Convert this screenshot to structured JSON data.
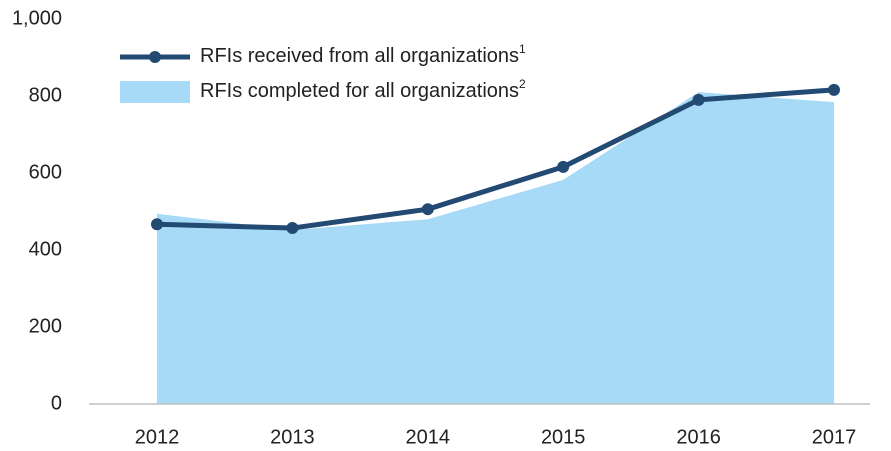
{
  "chart_data": {
    "type": "line-area",
    "categories": [
      "2012",
      "2013",
      "2014",
      "2015",
      "2016",
      "2017"
    ],
    "series": [
      {
        "name": "RFIs received from all organizations",
        "note": "1",
        "kind": "line",
        "color": "#234a72",
        "values": [
          467,
          457,
          506,
          616,
          790,
          816
        ]
      },
      {
        "name": "RFIs completed for all organizations",
        "note": "2",
        "kind": "area",
        "color": "#a6daf6",
        "values": [
          494,
          452,
          480,
          582,
          810,
          784
        ]
      }
    ],
    "ylim": [
      0,
      1000
    ],
    "yticks": [
      0,
      200,
      400,
      600,
      800,
      {
        "value": 1000,
        "label": "1,000"
      }
    ],
    "grid": false
  }
}
